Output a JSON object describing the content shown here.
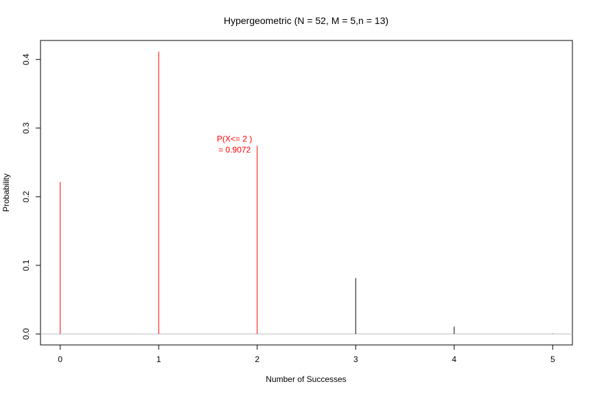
{
  "chart_data": {
    "type": "bar",
    "style": "spike",
    "title": "Hypergeometric (N = 52, M = 5,n = 13)",
    "xlabel": "Number of Successes",
    "ylabel": "Probability",
    "x": [
      0,
      1,
      2,
      3,
      4,
      5
    ],
    "values": [
      0.2215,
      0.4114,
      0.2743,
      0.0815,
      0.0107,
      0.0005
    ],
    "highlighted": [
      true,
      true,
      true,
      false,
      false,
      false
    ],
    "xlim": [
      -0.2,
      5.2
    ],
    "ylim": [
      -0.016,
      0.4277
    ],
    "xticks": [
      "0",
      "1",
      "2",
      "3",
      "4",
      "5"
    ],
    "yticks": [
      "0.0",
      "0.1",
      "0.2",
      "0.3",
      "0.4"
    ],
    "baseline": 0,
    "annotation": {
      "line1": "P(X<= 2 )",
      "line2": "=  0.9072",
      "x": 2,
      "y": 0.2743
    },
    "grid": false,
    "legend": "none",
    "colors": {
      "highlight": "#ff0000",
      "normal": "#000000",
      "baseline": "#bebebe",
      "axis": "#000000"
    }
  }
}
